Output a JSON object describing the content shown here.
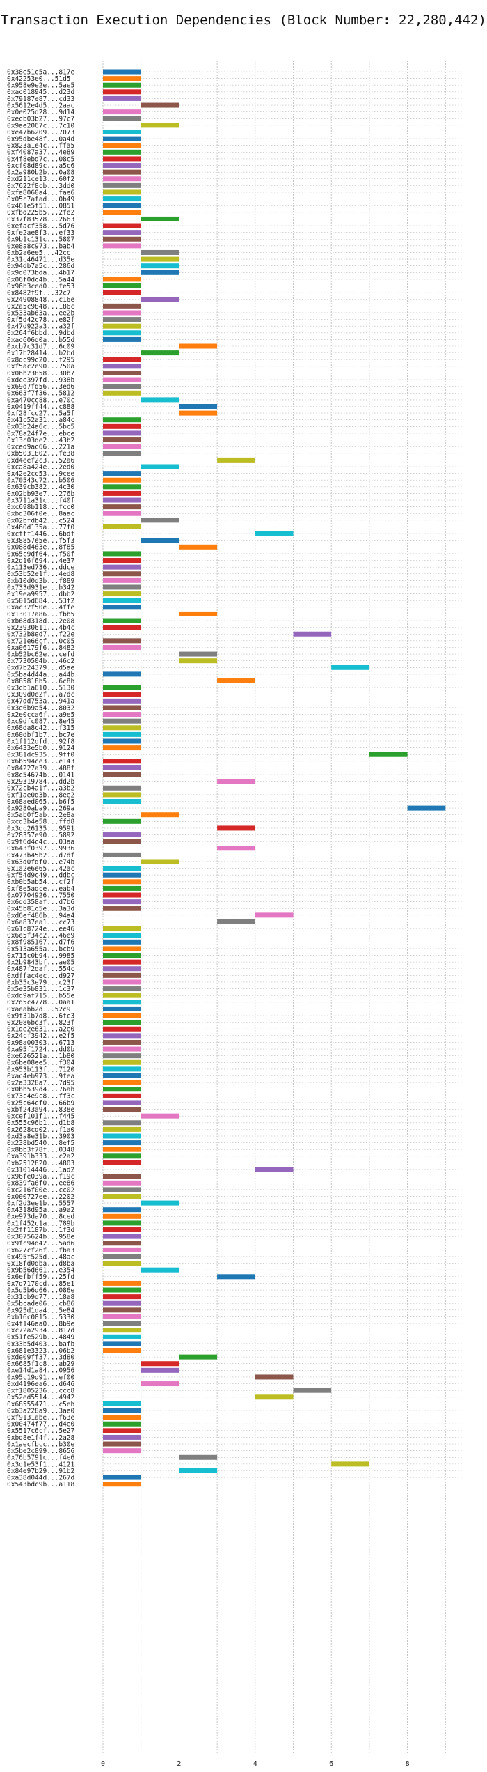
{
  "chart_data": {
    "type": "bar",
    "orientation": "horizontal",
    "title": "Transaction Execution Dependencies (Block Number: 22,280,442)",
    "xlabel": "",
    "ylabel": "",
    "xlim": [
      0,
      9.5
    ],
    "xticks": [
      0,
      2,
      4,
      6,
      8
    ],
    "grid": true,
    "legend": "none",
    "palette": [
      "#1f77b4",
      "#ff7f0e",
      "#2ca02c",
      "#d62728",
      "#9467bd",
      "#8c564b",
      "#e377c2",
      "#7f7f7f",
      "#bcbd22",
      "#17becf"
    ],
    "transactions": [
      [
        "0x38e51c5a...817e",
        0,
        1
      ],
      [
        "0x42253e0...51d5",
        0,
        1
      ],
      [
        "0x958e9e2e...5ae5",
        0,
        1
      ],
      [
        "0xac018945...d23d",
        0,
        1
      ],
      [
        "0x79187e87...cd33",
        0,
        1
      ],
      [
        "0x5612e4d5...2aac",
        1,
        2
      ],
      [
        "0x0e025d28...9d14",
        0,
        1
      ],
      [
        "0xecb03b27...97c7",
        0,
        1
      ],
      [
        "0x9ae2067c...7c10",
        1,
        2
      ],
      [
        "0xe47b6209...7073",
        0,
        1
      ],
      [
        "0x95dbe48f...0a4d",
        0,
        1
      ],
      [
        "0x823a1e4c...ffa5",
        0,
        1
      ],
      [
        "0xf4087a37...4e89",
        0,
        1
      ],
      [
        "0x4f8ebd7c...08c5",
        0,
        1
      ],
      [
        "0xcf08d89c...a5c6",
        0,
        1
      ],
      [
        "0x2a980b2b...0a08",
        0,
        1
      ],
      [
        "0xd211ce13...60f2",
        0,
        1
      ],
      [
        "0x7622f8cb...3dd0",
        0,
        1
      ],
      [
        "0xfa8060a4...fae6",
        0,
        1
      ],
      [
        "0x05c7afad...0b49",
        0,
        1
      ],
      [
        "0x461e5f51...0851",
        0,
        1
      ],
      [
        "0xfbd225b5...2fe2",
        0,
        1
      ],
      [
        "0x37f83578...2663",
        1,
        2
      ],
      [
        "0xefacf358...5d76",
        0,
        1
      ],
      [
        "0xfe2ae8f3...ef33",
        0,
        1
      ],
      [
        "0x9b1c131c...5807",
        0,
        1
      ],
      [
        "0xe8a8c973...bab4",
        0,
        1
      ],
      [
        "0xb2a6ee5...42cc",
        1,
        2
      ],
      [
        "0x31c46471...d35e",
        1,
        2
      ],
      [
        "0x94db7a5c...286d",
        1,
        2
      ],
      [
        "0x9d073bda...4b17",
        1,
        2
      ],
      [
        "0x06f0dc4b...5a44",
        0,
        1
      ],
      [
        "0x96b3ced0...fe53",
        0,
        1
      ],
      [
        "0x8482f9f...32c7",
        0,
        1
      ],
      [
        "0x24908848...c16e",
        1,
        2
      ],
      [
        "0x2a5c9848...186c",
        0,
        1
      ],
      [
        "0x533ab63a...ee2b",
        0,
        1
      ],
      [
        "0xf5d42c78...e82f",
        0,
        1
      ],
      [
        "0x47d922a3...a32f",
        0,
        1
      ],
      [
        "0x264f6bbd...9dbd",
        0,
        1
      ],
      [
        "0xac606d0a...b55d",
        0,
        1
      ],
      [
        "0xcb7c31d7...6c09",
        2,
        3
      ],
      [
        "0x17b28414...b2bd",
        1,
        2
      ],
      [
        "0x8dc99c20...f295",
        0,
        1
      ],
      [
        "0xf5ac2e90...750a",
        0,
        1
      ],
      [
        "0x06b23858...30b7",
        0,
        1
      ],
      [
        "0xdce397fd...938b",
        0,
        1
      ],
      [
        "0x69d7fd56...3ed6",
        0,
        1
      ],
      [
        "0x663f7f36...5812",
        0,
        1
      ],
      [
        "0xa470cc88...e70c",
        1,
        2
      ],
      [
        "0x0419ff44...c888",
        2,
        3
      ],
      [
        "0xf28fcc27...5a5f",
        2,
        3
      ],
      [
        "0x41c52a31...a84c",
        0,
        1
      ],
      [
        "0x03b24a6c...5bc5",
        0,
        1
      ],
      [
        "0x78a24f7e...ebce",
        0,
        1
      ],
      [
        "0x13c03de2...43b2",
        0,
        1
      ],
      [
        "0xced9ac66...221a",
        0,
        1
      ],
      [
        "0xb5031802...fe38",
        0,
        1
      ],
      [
        "0xd4eef2c3...52a6",
        3,
        4
      ],
      [
        "0xca8a424e...2ed0",
        1,
        2
      ],
      [
        "0x42e2cc53...9cee",
        0,
        1
      ],
      [
        "0x70543c72...b506",
        0,
        1
      ],
      [
        "0x639cb382...4c30",
        0,
        1
      ],
      [
        "0x02bb93e7...276b",
        0,
        1
      ],
      [
        "0x3711a31c...f40f",
        0,
        1
      ],
      [
        "0xc698b118...fcc0",
        0,
        1
      ],
      [
        "0xbd306f0e...8aac",
        0,
        1
      ],
      [
        "0x02bfdb42...c524",
        1,
        2
      ],
      [
        "0x460d135a...77f0",
        0,
        1
      ],
      [
        "0xcfff1446...6bdf",
        4,
        5
      ],
      [
        "0x38857e5e...f5f3",
        1,
        2
      ],
      [
        "0x088d463e...8f85",
        2,
        3
      ],
      [
        "0x65c9df64...f50f",
        0,
        1
      ],
      [
        "0x2d16f694...4e37",
        0,
        1
      ],
      [
        "0x113ed736...ddce",
        0,
        1
      ],
      [
        "0x53b52e1f...4ed8",
        0,
        1
      ],
      [
        "0xb10d0d3b...f889",
        0,
        1
      ],
      [
        "0x733d931e...b342",
        0,
        1
      ],
      [
        "0x19ea9957...dbb2",
        0,
        1
      ],
      [
        "0x5015d684...53f2",
        0,
        1
      ],
      [
        "0xac32f50e...4ffe",
        0,
        1
      ],
      [
        "0x13017a86...fbb5",
        2,
        3
      ],
      [
        "0xb68d318d...2e08",
        0,
        1
      ],
      [
        "0x23930611...4b4c",
        0,
        1
      ],
      [
        "0x732b8ed7...f22e",
        5,
        6
      ],
      [
        "0x721e66cf...0c05",
        0,
        1
      ],
      [
        "0xa06179f6...8482",
        0,
        1
      ],
      [
        "0xb52bc62e...cefd",
        2,
        3
      ],
      [
        "0x7730504b...46c2",
        2,
        3
      ],
      [
        "0xd7b24379...d5ae",
        6,
        7
      ],
      [
        "0x5ba4d44a...a44b",
        0,
        1
      ],
      [
        "0x885818b5...6c8b",
        3,
        4
      ],
      [
        "0x3cb1a610...5130",
        0,
        1
      ],
      [
        "0x309d0e2f...a7dc",
        0,
        1
      ],
      [
        "0x47dd753a...941a",
        0,
        1
      ],
      [
        "0x3e6b9a54...8032",
        0,
        1
      ],
      [
        "0x2e0cca6f...a9e5",
        0,
        1
      ],
      [
        "0xc9dfc087...8e45",
        0,
        1
      ],
      [
        "0x68da8c42...f315",
        0,
        1
      ],
      [
        "0x60dbf1b7...bc7e",
        0,
        1
      ],
      [
        "0x1f112dfd...92f8",
        0,
        1
      ],
      [
        "0x6433e5b0...9124",
        0,
        1
      ],
      [
        "0x381dc935...9ff0",
        7,
        8
      ],
      [
        "0x6b594ce3...e143",
        0,
        1
      ],
      [
        "0x84227a39...488f",
        0,
        1
      ],
      [
        "0x8c54674b...0141",
        0,
        1
      ],
      [
        "0x29319784...dd2b",
        3,
        4
      ],
      [
        "0x72cb4a1f...a3b2",
        0,
        1
      ],
      [
        "0xf1ae0d3b...8ee2",
        0,
        1
      ],
      [
        "0x68aed065...b6f5",
        0,
        1
      ],
      [
        "0x9280aba9...269a",
        8,
        9
      ],
      [
        "0x5ab0f5ab...2e8a",
        1,
        2
      ],
      [
        "0xcd3b4e58...ffd8",
        0,
        1
      ],
      [
        "0x3dc26135...9591",
        3,
        4
      ],
      [
        "0x28357e90...5892",
        0,
        1
      ],
      [
        "0x9f6d4c4c...03aa",
        0,
        1
      ],
      [
        "0x643f0397...9936",
        3,
        4
      ],
      [
        "0x473b45b2...d7df",
        0,
        1
      ],
      [
        "0x63d0fdf0...e74b",
        1,
        2
      ],
      [
        "0x1a2e6e65...42ac",
        0,
        1
      ],
      [
        "0xf54d9c49...ddbc",
        0,
        1
      ],
      [
        "0xb0b5ab54...cf2f",
        0,
        1
      ],
      [
        "0xf8e5adce...eab4",
        0,
        1
      ],
      [
        "0x07704926...7550",
        0,
        1
      ],
      [
        "0x6dd358af...d7b6",
        0,
        1
      ],
      [
        "0x45b81c5e...3a3d",
        0,
        1
      ],
      [
        "0xd6ef486b...94a4",
        4,
        5
      ],
      [
        "0x6a837ea1...cc73",
        3,
        4
      ],
      [
        "0x61c8724e...ee46",
        0,
        1
      ],
      [
        "0x6e5f34c2...46e9",
        0,
        1
      ],
      [
        "0x8f985167...d7f6",
        0,
        1
      ],
      [
        "0x513a655a...bcb9",
        0,
        1
      ],
      [
        "0x715c0b94...9985",
        0,
        1
      ],
      [
        "0x2b9843bf...ae05",
        0,
        1
      ],
      [
        "0x487f2daf...554c",
        0,
        1
      ],
      [
        "0xdffac4ec...d927",
        0,
        1
      ],
      [
        "0xb35c3e79...c23f",
        0,
        1
      ],
      [
        "0x5e35b831...1c37",
        0,
        1
      ],
      [
        "0xdd9af715...b55e",
        0,
        1
      ],
      [
        "0x2d5c4778...0aa1",
        0,
        1
      ],
      [
        "0xaeabb2d...52c9",
        0,
        1
      ],
      [
        "0x9f31b7d8...6fc3",
        0,
        1
      ],
      [
        "0x2086bc3f...823f",
        0,
        1
      ],
      [
        "0x1de2e631...a2e0",
        0,
        1
      ],
      [
        "0x24cf3942...e2f5",
        0,
        1
      ],
      [
        "0x98a00303...6713",
        0,
        1
      ],
      [
        "0xa95f1724...dd0b",
        0,
        1
      ],
      [
        "0xe626521a...1b80",
        0,
        1
      ],
      [
        "0x6be08ee5...f304",
        0,
        1
      ],
      [
        "0x953b113f...7120",
        0,
        1
      ],
      [
        "0xac4eb973...9fea",
        0,
        1
      ],
      [
        "0x2a3328a7...7d95",
        0,
        1
      ],
      [
        "0x0bb539d4...76ab",
        0,
        1
      ],
      [
        "0x73c4e9c8...ff3c",
        0,
        1
      ],
      [
        "0x25c64cf0...66b9",
        0,
        1
      ],
      [
        "0xbf243a94...838e",
        0,
        1
      ],
      [
        "0xcef101f1...f445",
        1,
        2
      ],
      [
        "0x555c96b1...d1b8",
        0,
        1
      ],
      [
        "0x2628cd02...f1a0",
        0,
        1
      ],
      [
        "0xd3a8e31b...3903",
        0,
        1
      ],
      [
        "0x238bd540...8ef5",
        0,
        1
      ],
      [
        "0x8bb3f78f...0348",
        0,
        1
      ],
      [
        "0xa391b333...c2a2",
        0,
        1
      ],
      [
        "0xb2512820...4803",
        0,
        1
      ],
      [
        "0x31014446...1ad2",
        4,
        5
      ],
      [
        "0x96fe039a...f19c",
        0,
        1
      ],
      [
        "0x839fa6f0...ee86",
        0,
        1
      ],
      [
        "0xc216f00e...cc02",
        0,
        1
      ],
      [
        "0x000727ee...2202",
        0,
        1
      ],
      [
        "0xf2d3ee1b...5557",
        1,
        2
      ],
      [
        "0x4318d95a...a9a2",
        0,
        1
      ],
      [
        "0xe973da70...8ced",
        0,
        1
      ],
      [
        "0x1f452c1a...789b",
        0,
        1
      ],
      [
        "0x2ff1187b...1f3d",
        0,
        1
      ],
      [
        "0x3075624b...958e",
        0,
        1
      ],
      [
        "0x9fc94d42...5ad6",
        0,
        1
      ],
      [
        "0x627cf26f...fba3",
        0,
        1
      ],
      [
        "0x495f525d...48ac",
        0,
        1
      ],
      [
        "0x18fd0dba...d8ba",
        0,
        1
      ],
      [
        "0x9b56d661...e354",
        1,
        2
      ],
      [
        "0x6efbff59...25fd",
        3,
        4
      ],
      [
        "0x7d7170cd...85e1",
        0,
        1
      ],
      [
        "0x5d5b6d66...086e",
        0,
        1
      ],
      [
        "0x31cb9d77...18a8",
        0,
        1
      ],
      [
        "0x5bcade06...cb86",
        0,
        1
      ],
      [
        "0x925d1da4...5e84",
        0,
        1
      ],
      [
        "0xb16c0815...5330",
        0,
        1
      ],
      [
        "0x4f146aa0...8b9e",
        0,
        1
      ],
      [
        "0xc72a2934...817d",
        0,
        1
      ],
      [
        "0x51fe529b...4849",
        0,
        1
      ],
      [
        "0x33b5d403...bafb",
        0,
        1
      ],
      [
        "0x681e3323...06b2",
        0,
        1
      ],
      [
        "0xde09ff37...3d80",
        2,
        3
      ],
      [
        "0x6685f1c8...ab29",
        1,
        2
      ],
      [
        "0xe14d1a84...0956",
        1,
        2
      ],
      [
        "0x95c19d91...ef00",
        4,
        5
      ],
      [
        "0xd4196ea6...d646",
        1,
        2
      ],
      [
        "0xf1805236...ccc8",
        5,
        6
      ],
      [
        "0x52ed5514...4942",
        4,
        5
      ],
      [
        "0x68555471...c5eb",
        0,
        1
      ],
      [
        "0xb3a228a9...3ae0",
        0,
        1
      ],
      [
        "0xf9131abe...f63e",
        0,
        1
      ],
      [
        "0x00474f77...d4e0",
        0,
        1
      ],
      [
        "0x5517c6cf...5e27",
        0,
        1
      ],
      [
        "0xbd8e1f4f...2a28",
        0,
        1
      ],
      [
        "0x1aecfbcc...b30e",
        0,
        1
      ],
      [
        "0x5be2c899...8656",
        0,
        1
      ],
      [
        "0x76b5791c...f4e6",
        2,
        3
      ],
      [
        "0x3d1e53f1...4121",
        6,
        7
      ],
      [
        "0x84e97b29...91b2",
        2,
        3
      ],
      [
        "0xa38d044d...267d",
        0,
        1
      ],
      [
        "0x543bdc9b...a118",
        0,
        1
      ]
    ]
  }
}
